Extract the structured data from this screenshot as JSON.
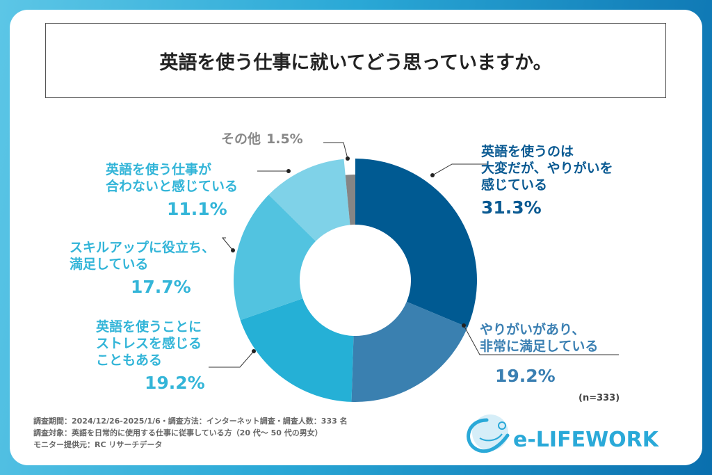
{
  "title": "英語を使う仕事に就いてどう思っていますか。",
  "sample_size": "(n=333)",
  "footer": [
    "調査期間：2024/12/26-2025/1/6・調査方法：インターネット調査・調査人数：333 名",
    "調査対象：英語を日常的に使用する仕事に従事している方（20 代～ 50 代の男女）",
    "モニター提供元：RC リサーチデータ"
  ],
  "logo_text": "e-LIFEWORK",
  "chart_data": {
    "type": "donut",
    "title": "英語を使う仕事に就いてどう思っていますか。",
    "start": "top, clockwise",
    "slices": [
      {
        "label": "英語を使うのは大変だが、やりがいを感じている",
        "lines": [
          "英語を使うのは",
          "大変だが、やりがいを",
          "感じている"
        ],
        "value": 31.3,
        "pct": "31.3%",
        "color": "#005a92"
      },
      {
        "label": "やりがいがあり、非常に満足している",
        "lines": [
          "やりがいがあり、",
          "非常に満足している"
        ],
        "value": 19.2,
        "pct": "19.2%",
        "color": "#3a80b0"
      },
      {
        "label": "英語を使うことにストレスを感じることもある",
        "lines": [
          "英語を使うことに",
          "ストレスを感じる",
          "こともある"
        ],
        "value": 19.2,
        "pct": "19.2%",
        "color": "#25b0d6"
      },
      {
        "label": "スキルアップに役立ち、満足している",
        "lines": [
          "スキルアップに役立ち、",
          "満足している"
        ],
        "value": 17.7,
        "pct": "17.7%",
        "color": "#52c3e0"
      },
      {
        "label": "英語を使う仕事が合わないと感じている",
        "lines": [
          "英語を使う仕事が",
          "合わないと感じている"
        ],
        "value": 11.1,
        "pct": "11.1%",
        "color": "#7fd2e8"
      },
      {
        "label": "その他",
        "lines": [
          "その他"
        ],
        "value": 1.5,
        "pct": "1.5%",
        "color": "#858585"
      }
    ]
  }
}
